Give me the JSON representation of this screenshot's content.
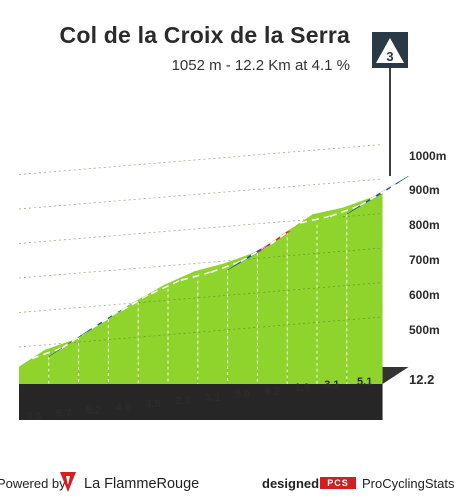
{
  "header": {
    "title": "Col de la Croix de la Serra",
    "subtitle": "1052 m - 12.2 Km at 4.1 %",
    "category_badge": "3"
  },
  "footer": {
    "powered_by": "Powered by",
    "brand": "La FlammeRouge",
    "designed_for": "designed for",
    "pcs_badge": "PCS",
    "pcs_name": "ProCyclingStats"
  },
  "colors": {
    "easy": "#8fd42c",
    "medium": "#1e5a8c",
    "hard": "#e8202a",
    "base": "#262626",
    "start_wall": "#a99b8a"
  },
  "chart_data": {
    "type": "area",
    "title": "Col de la Croix de la Serra",
    "xlabel": "",
    "ylabel": "",
    "distance_km": 12.2,
    "y_tick_labels": [
      "500m",
      "600m",
      "700m",
      "800m",
      "900m",
      "1000m"
    ],
    "km_markers": [
      "1",
      "2",
      "3",
      "4",
      "5",
      "6",
      "7",
      "8",
      "9",
      "10",
      "11"
    ],
    "end_label": "12.2",
    "segments": [
      {
        "km": 1,
        "gradient": 3.0,
        "tier": "easy"
      },
      {
        "km": 2,
        "gradient": 5.7,
        "tier": "medium"
      },
      {
        "km": 3,
        "gradient": 5.2,
        "tier": "medium"
      },
      {
        "km": 4,
        "gradient": 4.9,
        "tier": "easy"
      },
      {
        "km": 5,
        "gradient": 3.9,
        "tier": "easy"
      },
      {
        "km": 6,
        "gradient": 2.3,
        "tier": "easy"
      },
      {
        "km": 7,
        "gradient": 3.1,
        "tier": "easy"
      },
      {
        "km": 8,
        "gradient": 5.0,
        "tier": "medium"
      },
      {
        "km": 9,
        "gradient": 6.2,
        "tier": "hard"
      },
      {
        "km": 10,
        "gradient": 1.9,
        "tier": "easy"
      },
      {
        "km": 11,
        "gradient": 3.1,
        "tier": "easy"
      },
      {
        "km": 12.2,
        "gradient": 5.1,
        "tier": "medium"
      }
    ]
  }
}
